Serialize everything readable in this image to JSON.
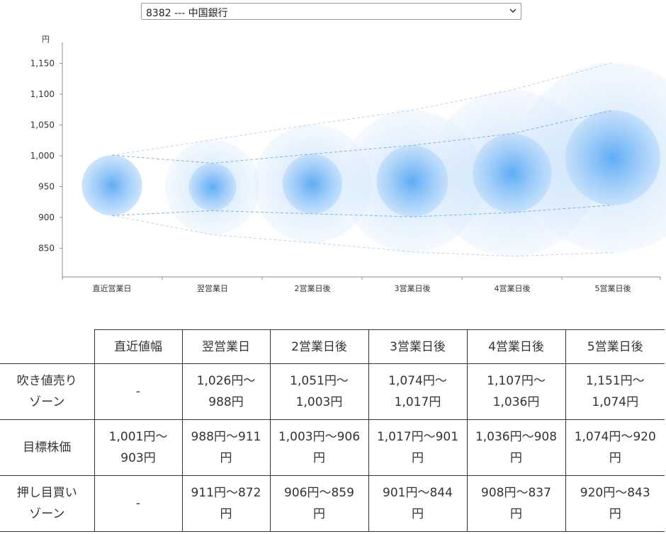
{
  "select": {
    "value": "8382 --- 中国銀行"
  },
  "colors": {
    "bubble": "#5aa9f5",
    "line": "#7fb3dc",
    "axis": "#888888"
  },
  "chart_data": {
    "type": "scatter",
    "y_unit": "円",
    "yticks": [
      "1,150",
      "1,100",
      "1,050",
      "1,000",
      "950",
      "900",
      "850"
    ],
    "ylim": [
      815,
      1190
    ],
    "categories": [
      "直近営業日",
      "翌営業日",
      "2営業日後",
      "3営業日後",
      "4営業日後",
      "5営業日後"
    ],
    "inner_bubbles": [
      {
        "y": 952,
        "upper": 1001,
        "lower": 903
      },
      {
        "y": 949,
        "upper": 988,
        "lower": 911
      },
      {
        "y": 954,
        "upper": 1003,
        "lower": 906
      },
      {
        "y": 959,
        "upper": 1017,
        "lower": 901
      },
      {
        "y": 972,
        "upper": 1036,
        "lower": 908
      },
      {
        "y": 997,
        "upper": 1074,
        "lower": 920
      }
    ],
    "outer_bubbles": [
      null,
      {
        "y": 949,
        "upper": 1026,
        "lower": 872
      },
      {
        "y": 955,
        "upper": 1051,
        "lower": 859
      },
      {
        "y": 959,
        "upper": 1074,
        "lower": 844
      },
      {
        "y": 972,
        "upper": 1107,
        "lower": 837
      },
      {
        "y": 997,
        "upper": 1151,
        "lower": 843
      }
    ]
  },
  "table": {
    "headers": [
      "",
      "直近値幅",
      "翌営業日",
      "2営業日後",
      "3営業日後",
      "4営業日後",
      "5営業日後"
    ],
    "rows": [
      {
        "label": [
          "吹き値売り",
          "ゾーン"
        ],
        "cells": [
          [
            "-"
          ],
          [
            "1,026円〜",
            "988円"
          ],
          [
            "1,051円〜",
            "1,003円"
          ],
          [
            "1,074円〜",
            "1,017円"
          ],
          [
            "1,107円〜",
            "1,036円"
          ],
          [
            "1,151円〜",
            "1,074円"
          ]
        ]
      },
      {
        "label": [
          "目標株価"
        ],
        "cells": [
          [
            "1,001円〜",
            "903円"
          ],
          [
            "988円〜911",
            "円"
          ],
          [
            "1,003円〜906",
            "円"
          ],
          [
            "1,017円〜901",
            "円"
          ],
          [
            "1,036円〜908",
            "円"
          ],
          [
            "1,074円〜920",
            "円"
          ]
        ]
      },
      {
        "label": [
          "押し目買い",
          "ゾーン"
        ],
        "cells": [
          [
            "-"
          ],
          [
            "911円〜872",
            "円"
          ],
          [
            "906円〜859",
            "円"
          ],
          [
            "901円〜844",
            "円"
          ],
          [
            "908円〜837",
            "円"
          ],
          [
            "920円〜843",
            "円"
          ]
        ]
      }
    ]
  }
}
